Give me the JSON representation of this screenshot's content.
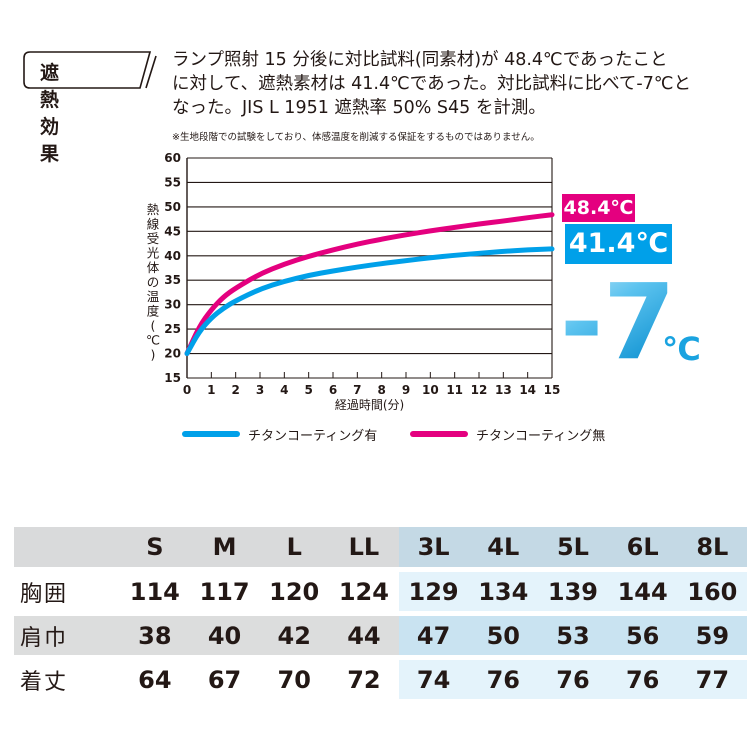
{
  "header": {
    "badge": "遮熱効果",
    "description_lines": [
      "ランプ照射 15 分後に対比試料(同素材)が 48.4℃であったこと",
      "に対して、遮熱素材は 41.4℃であった。対比試料に比べて-7℃と",
      "なった。JIS L 1951 遮熱率 50% S45 を計測。"
    ],
    "note": "※生地段階での試験をしており、体感温度を削減する保証をするものではありません。"
  },
  "chart_data": {
    "type": "line",
    "ylabel": "熱線受光体の温度(℃)",
    "xlabel": "経過時間(分)",
    "xlim": [
      0,
      15
    ],
    "ylim": [
      15,
      60
    ],
    "x_ticks": [
      0,
      1,
      2,
      3,
      4,
      5,
      6,
      7,
      8,
      9,
      10,
      11,
      12,
      13,
      14,
      15
    ],
    "y_ticks": [
      15,
      20,
      25,
      30,
      35,
      40,
      45,
      50,
      55,
      60
    ],
    "grid": "horizontal",
    "series": [
      {
        "name": "チタンコーティング有",
        "color": "#00a0e9",
        "x": [
          0,
          0.5,
          1,
          1.5,
          2,
          3,
          4,
          5,
          6,
          7,
          8,
          9,
          10,
          11,
          12,
          13,
          14,
          15
        ],
        "y": [
          20,
          24.5,
          27.3,
          29.3,
          30.8,
          33.2,
          34.8,
          36.0,
          36.9,
          37.7,
          38.4,
          39.0,
          39.6,
          40.1,
          40.5,
          40.9,
          41.2,
          41.4
        ]
      },
      {
        "name": "チタンコーティング無",
        "color": "#e4007f",
        "x": [
          0,
          0.5,
          1,
          1.5,
          2,
          3,
          4,
          5,
          6,
          7,
          8,
          9,
          10,
          11,
          12,
          13,
          14,
          15
        ],
        "y": [
          20,
          25.5,
          29.0,
          31.6,
          33.4,
          36.3,
          38.3,
          39.9,
          41.2,
          42.4,
          43.4,
          44.3,
          45.1,
          45.8,
          46.5,
          47.1,
          47.8,
          48.4
        ]
      }
    ],
    "annotations": {
      "red_value": "48.4℃",
      "blue_value": "41.4℃",
      "difference": "-7",
      "difference_unit": "℃"
    }
  },
  "size_table": {
    "sizes": [
      "S",
      "M",
      "L",
      "LL",
      "3L",
      "4L",
      "5L",
      "6L",
      "8L"
    ],
    "rows": [
      {
        "label": "胸囲",
        "values": [
          "114",
          "117",
          "120",
          "124",
          "129",
          "134",
          "139",
          "144",
          "160"
        ]
      },
      {
        "label": "肩巾",
        "values": [
          "38",
          "40",
          "42",
          "44",
          "47",
          "50",
          "53",
          "56",
          "59"
        ]
      },
      {
        "label": "着丈",
        "values": [
          "64",
          "67",
          "70",
          "72",
          "74",
          "76",
          "76",
          "76",
          "77"
        ]
      }
    ]
  }
}
